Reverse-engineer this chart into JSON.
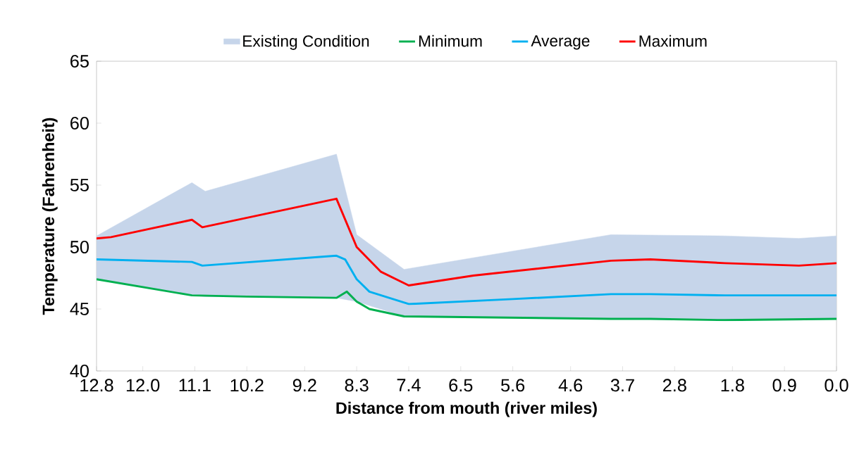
{
  "chart_data": {
    "type": "line",
    "xlabel": "Distance from mouth (river miles)",
    "ylabel": "Temperature (Fahrenheit)",
    "xlim": [
      12.8,
      0.0
    ],
    "xticks": [
      12.8,
      {
        "value": 12.0,
        "label": "12.0"
      },
      11.1,
      10.2,
      9.2,
      8.3,
      7.4,
      6.5,
      5.6,
      4.6,
      3.7,
      2.8,
      1.8,
      0.9,
      {
        "value": 0.0,
        "label": "0.0"
      }
    ],
    "ylim": [
      40,
      65
    ],
    "yticks": [
      40,
      45,
      50,
      55,
      60,
      65
    ],
    "legend": "top",
    "series": [
      {
        "name": "Existing Condition",
        "type": "area",
        "color": "#c6d5ea",
        "x": [
          12.8,
          11.15,
          10.92,
          8.65,
          8.3,
          7.48,
          3.9,
          1.93,
          0.65,
          0.0
        ],
        "values": [
          null,
          null,
          null,
          null,
          null,
          null,
          null,
          null,
          null,
          null
        ],
        "lower": [
          47.4,
          46.1,
          46.0,
          45.9,
          45.6,
          44.4,
          44.2,
          44.1,
          44.1,
          44.2
        ],
        "upper": [
          50.9,
          55.2,
          54.5,
          57.5,
          51.0,
          48.2,
          51.0,
          50.9,
          50.7,
          50.9
        ]
      },
      {
        "name": "Minimum",
        "color": "#00b050",
        "x": [
          12.8,
          11.15,
          10.2,
          8.65,
          8.47,
          8.3,
          8.08,
          7.48,
          3.9,
          3.22,
          1.93,
          0.0
        ],
        "values": [
          47.4,
          46.1,
          46.0,
          45.9,
          46.4,
          45.6,
          45.0,
          44.4,
          44.2,
          44.2,
          44.1,
          44.2
        ]
      },
      {
        "name": "Average",
        "color": "#00b0f0",
        "x": [
          12.8,
          11.15,
          10.97,
          8.65,
          8.5,
          8.3,
          8.08,
          7.4,
          5.6,
          3.9,
          3.22,
          1.93,
          0.0
        ],
        "values": [
          49.0,
          48.8,
          48.5,
          49.3,
          49.0,
          47.4,
          46.4,
          45.4,
          45.8,
          46.2,
          46.2,
          46.1,
          46.1
        ]
      },
      {
        "name": "Maximum",
        "color": "#ff0000",
        "x": [
          12.8,
          12.55,
          11.15,
          10.97,
          8.65,
          8.3,
          7.88,
          7.4,
          6.28,
          3.9,
          3.22,
          1.93,
          0.65,
          0.0
        ],
        "values": [
          50.7,
          50.8,
          52.2,
          51.6,
          53.9,
          50.0,
          48.0,
          46.9,
          47.7,
          48.9,
          49.0,
          48.7,
          48.5,
          48.7
        ]
      }
    ]
  }
}
